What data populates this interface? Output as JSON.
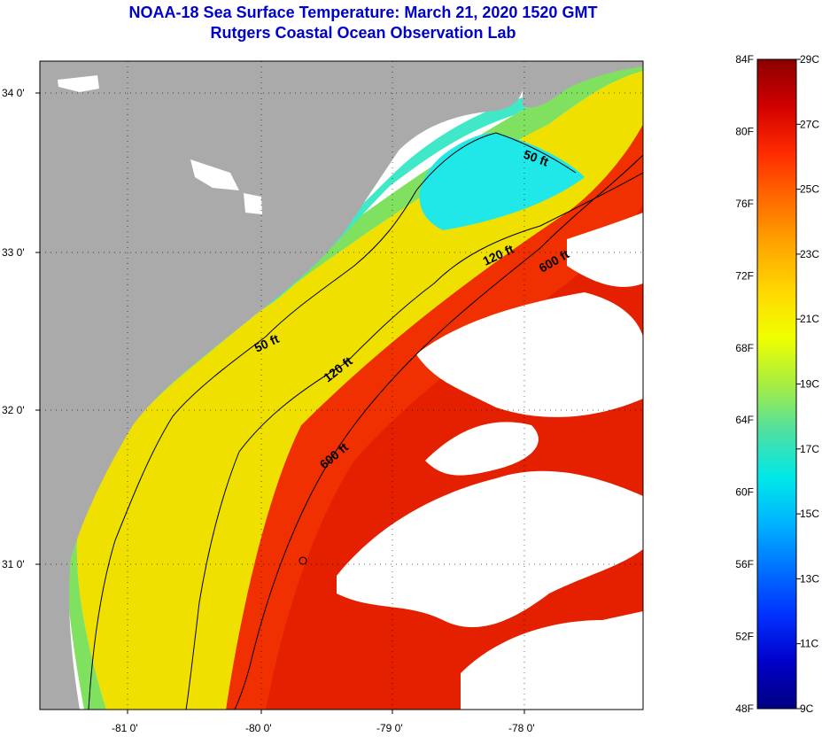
{
  "title": {
    "line1": "NOAA-18 Sea Surface Temperature:  March 21, 2020 1520 GMT",
    "line2": "Rutgers Coastal Ocean Observation Lab"
  },
  "map": {
    "lat_ticks": [
      "34 0'",
      "33 0'",
      "32 0'",
      "31 0'"
    ],
    "lon_ticks": [
      "-81 0'",
      "-80 0'",
      "-79 0'",
      "-78 0'"
    ],
    "contours": [
      {
        "label": "50 ft",
        "depth_ft": 50
      },
      {
        "label": "50 ft",
        "depth_ft": 50
      },
      {
        "label": "120 ft",
        "depth_ft": 120
      },
      {
        "label": "120 ft",
        "depth_ft": 120
      },
      {
        "label": "600 ft",
        "depth_ft": 600
      },
      {
        "label": "600 ft",
        "depth_ft": 600
      }
    ],
    "colors": {
      "land": "#aaaaaa",
      "cloud": "#ffffff",
      "grid": "#000000"
    }
  },
  "colorbar": {
    "fahrenheit_labels": [
      "84F",
      "80F",
      "76F",
      "72F",
      "68F",
      "64F",
      "60F",
      "56F",
      "52F",
      "48F"
    ],
    "celsius_labels": [
      "29C",
      "27C",
      "25C",
      "23C",
      "21C",
      "19C",
      "17C",
      "15C",
      "13C",
      "11C",
      "9C"
    ],
    "range_f": [
      48,
      84
    ],
    "range_c": [
      9,
      29
    ],
    "gradient": [
      "#8b0000",
      "#d00000",
      "#ff2a00",
      "#ff6a00",
      "#ffa500",
      "#ffd800",
      "#f0ff00",
      "#a8ee40",
      "#50e0a0",
      "#00e8e8",
      "#00b4ff",
      "#0070ff",
      "#0030ff",
      "#0000c8",
      "#000080"
    ]
  }
}
